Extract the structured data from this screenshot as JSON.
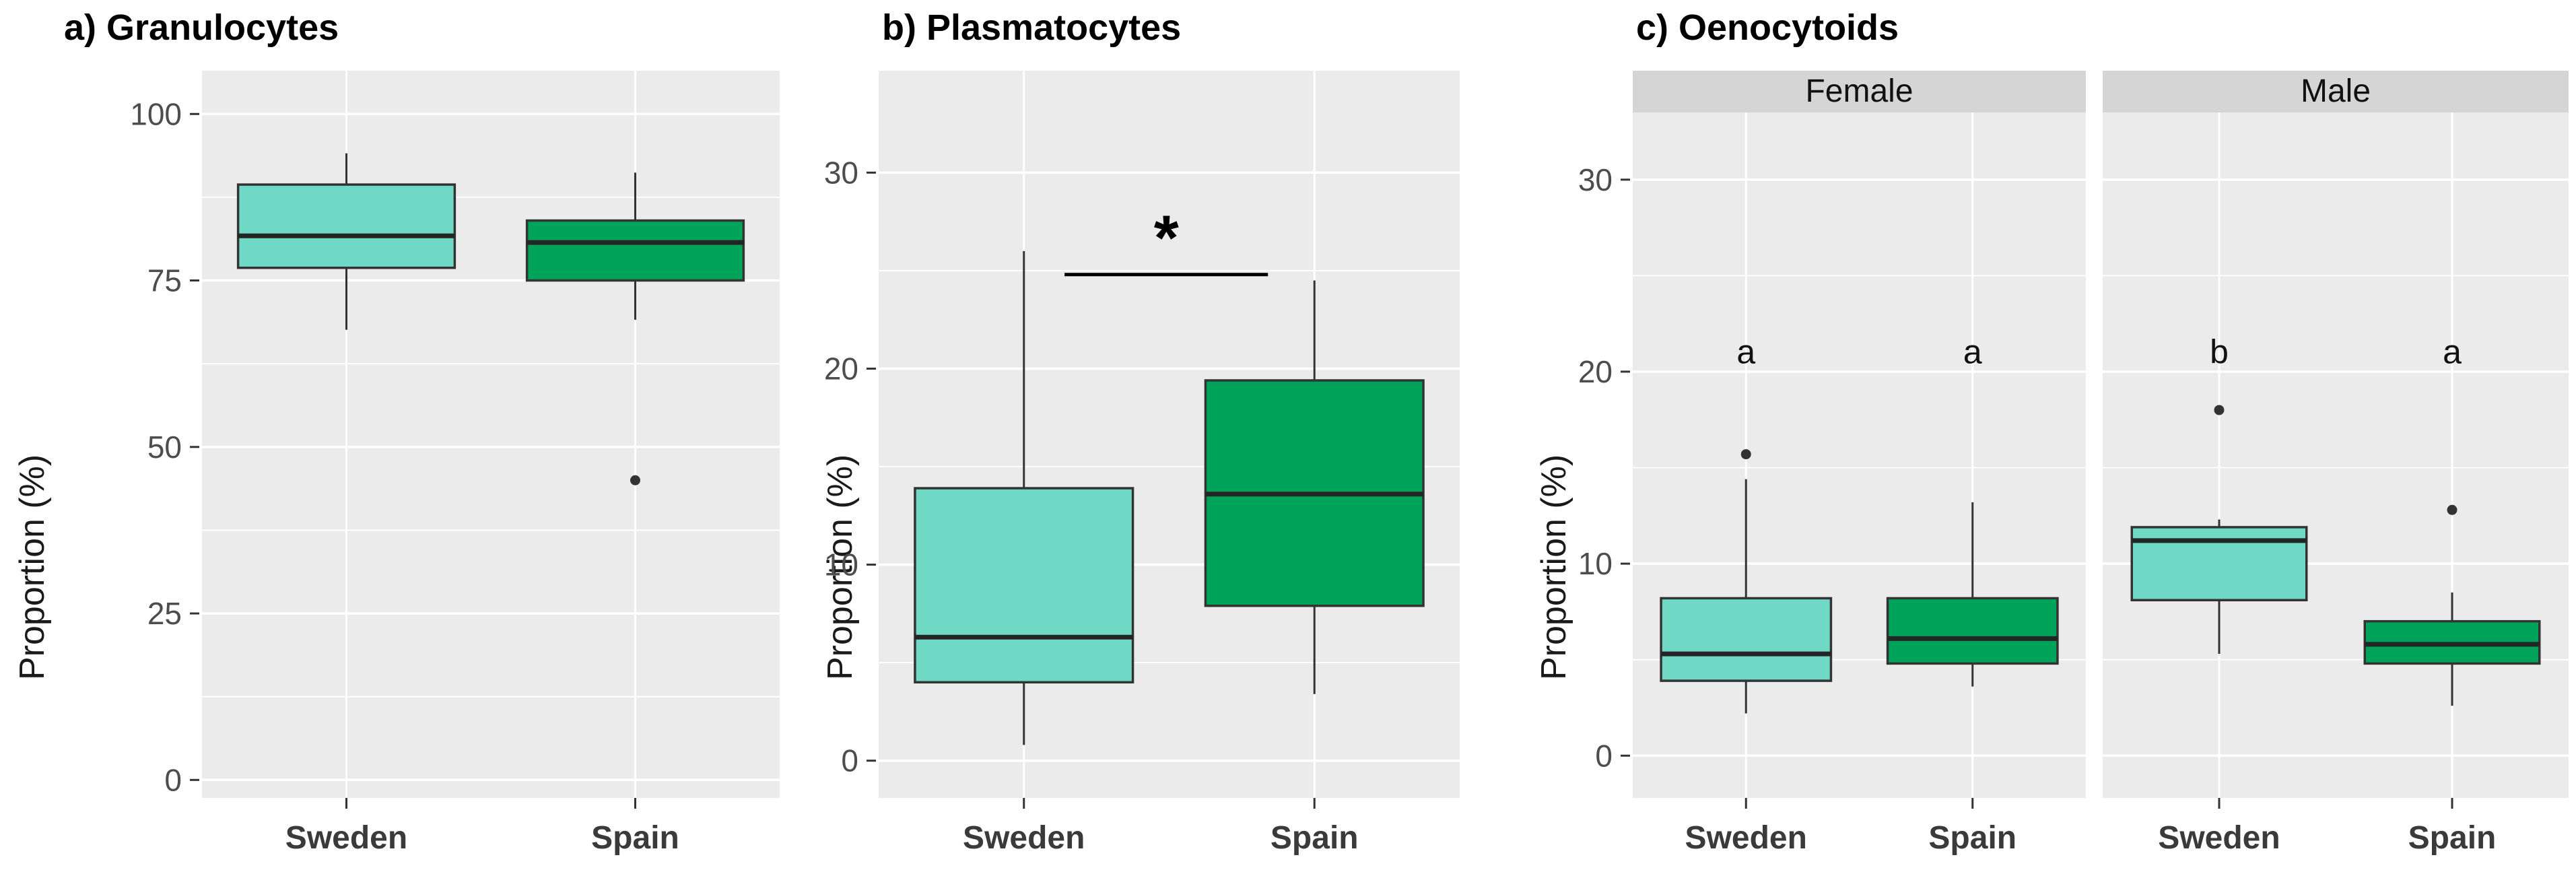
{
  "figure": {
    "kind": "boxplot-figure",
    "background": "#ffffff",
    "panel_background": "#EBEBEB",
    "grid_color": "#FFFFFF",
    "strip_background": "#D5D5D5",
    "box_border_color": "#333333",
    "median_color": "#252525",
    "whisker_color": "#333333",
    "outlier_color": "#333333",
    "tick_label_color": "#4D4D4D",
    "x_label_color": "#3A3A3A",
    "annotation_color": "#000000",
    "sweden_fill": "#70D9C6",
    "spain_fill": "#00A35A"
  },
  "chart_data": [
    {
      "type": "box",
      "title": "a) Granulocytes",
      "ylabel": "Proportion (%)",
      "xlabel": "",
      "categories": [
        "Sweden",
        "Spain"
      ],
      "yticks": [
        0,
        25,
        50,
        75,
        100
      ],
      "yminorticks": [
        12.5,
        37.5,
        62.5,
        87.5
      ],
      "ylim": [
        -2.7,
        106.5
      ],
      "legend": "none",
      "grid": "on",
      "series": [
        {
          "name": "Sweden",
          "fill_key": "sweden_fill",
          "whisker_low": 67.6,
          "q1": 76.9,
          "median": 81.7,
          "q3": 89.4,
          "whisker_high": 94.1,
          "outliers": []
        },
        {
          "name": "Spain",
          "fill_key": "spain_fill",
          "whisker_low": 69.1,
          "q1": 75.0,
          "median": 80.7,
          "q3": 84.0,
          "whisker_high": 91.2,
          "outliers": [
            45.0
          ]
        }
      ]
    },
    {
      "type": "box",
      "title": "b) Plasmatocytes",
      "ylabel": "Proportion (%)",
      "xlabel": "",
      "categories": [
        "Sweden",
        "Spain"
      ],
      "yticks": [
        0,
        10,
        20,
        30
      ],
      "yminorticks": [
        5,
        15,
        25
      ],
      "ylim": [
        -1.9,
        35.2
      ],
      "legend": "none",
      "grid": "on",
      "series": [
        {
          "name": "Sweden",
          "fill_key": "sweden_fill",
          "whisker_low": 0.8,
          "q1": 4.0,
          "median": 6.3,
          "q3": 13.9,
          "whisker_high": 26.0,
          "outliers": []
        },
        {
          "name": "Spain",
          "fill_key": "spain_fill",
          "whisker_low": 3.4,
          "q1": 7.9,
          "median": 13.6,
          "q3": 19.4,
          "whisker_high": 24.5,
          "outliers": []
        }
      ],
      "significance": {
        "label": "*",
        "bar_y": 24.8,
        "label_y": 26.6,
        "x_frac_from": 0.32,
        "x_frac_to": 0.67
      }
    },
    {
      "type": "box",
      "title": "c) Oenocytoids",
      "ylabel": "Proportion (%)",
      "xlabel": "",
      "yticks": [
        0,
        10,
        20,
        30
      ],
      "yminorticks": [
        5,
        15,
        25
      ],
      "ylim": [
        -2.2,
        33.5
      ],
      "legend": "none",
      "grid": "on",
      "letters_y": 21,
      "facets": [
        {
          "label": "Female",
          "categories": [
            "Sweden",
            "Spain"
          ],
          "series": [
            {
              "name": "Sweden",
              "fill_key": "sweden_fill",
              "letter": "a",
              "whisker_low": 2.2,
              "q1": 3.9,
              "median": 5.3,
              "q3": 8.2,
              "whisker_high": 14.4,
              "outliers": [
                15.7
              ]
            },
            {
              "name": "Spain",
              "fill_key": "spain_fill",
              "letter": "a",
              "whisker_low": 3.6,
              "q1": 4.8,
              "median": 6.1,
              "q3": 8.2,
              "whisker_high": 13.2,
              "outliers": []
            }
          ]
        },
        {
          "label": "Male",
          "categories": [
            "Sweden",
            "Spain"
          ],
          "series": [
            {
              "name": "Sweden",
              "fill_key": "sweden_fill",
              "letter": "b",
              "whisker_low": 5.3,
              "q1": 8.1,
              "median": 11.2,
              "q3": 11.9,
              "whisker_high": 12.3,
              "outliers": [
                18.0
              ]
            },
            {
              "name": "Spain",
              "fill_key": "spain_fill",
              "letter": "a",
              "whisker_low": 2.6,
              "q1": 4.8,
              "median": 5.8,
              "q3": 7.0,
              "whisker_high": 8.5,
              "outliers": [
                12.8
              ]
            }
          ]
        }
      ]
    }
  ]
}
